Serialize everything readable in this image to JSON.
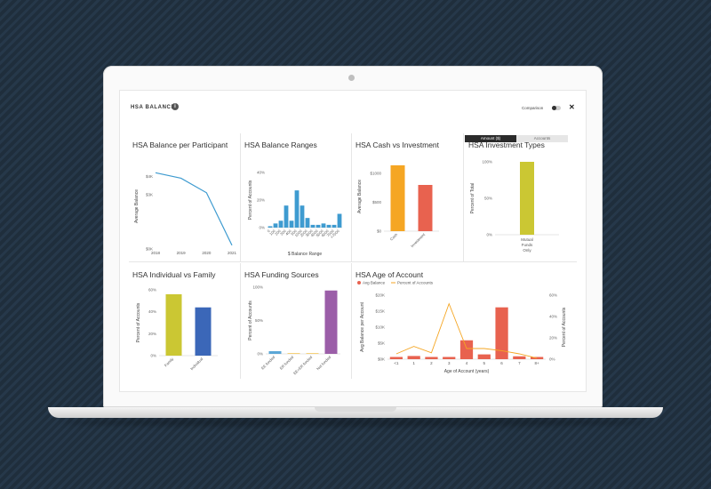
{
  "header": {
    "title": "HSA BALANCE",
    "info_glyph": "i",
    "comparison_label": "Comparison",
    "close_glyph": "✕",
    "toggle": {
      "amount_label": "Amount ($)",
      "accounts_label": "Accounts"
    }
  },
  "colors": {
    "blue": "#3e9bd0",
    "orange": "#f5a623",
    "red": "#e8624f",
    "olive": "#cbc733",
    "navy": "#3b67b8",
    "purple": "#9b5ea8",
    "sky": "#5ba7d6",
    "gold": "#f3c24d"
  },
  "chart_data": [
    {
      "id": "balance-per-participant",
      "type": "line",
      "title": "HSA Balance per Participant",
      "xlabel": "",
      "ylabel": "Average Balance",
      "categories": [
        "2018",
        "2019",
        "2020",
        "2021"
      ],
      "values": [
        4200,
        3900,
        3100,
        200
      ],
      "ylim": [
        0,
        5000
      ],
      "yticks": [
        "$0K",
        "$3K",
        "$4K"
      ],
      "ytick_values": [
        0,
        3000,
        4000
      ]
    },
    {
      "id": "balance-ranges",
      "type": "bar",
      "title": "HSA Balance Ranges",
      "xlabel": "$ Balance Range",
      "ylabel": "Percent of Accounts",
      "categories": [
        "0",
        "100",
        "200",
        "300",
        "400",
        "500",
        "1000",
        "2000",
        "3000",
        "4000",
        "5000",
        "6000",
        "7000",
        ">7000"
      ],
      "values": [
        1,
        3,
        5,
        16,
        5,
        27,
        16,
        7,
        2,
        2,
        3,
        2,
        2,
        10
      ],
      "ylim": [
        0,
        40
      ],
      "yticks": [
        "0%",
        "20%",
        "40%"
      ],
      "ytick_values": [
        0,
        20,
        40
      ]
    },
    {
      "id": "cash-vs-investment",
      "type": "bar",
      "title": "HSA Cash vs Investment",
      "xlabel": "",
      "ylabel": "Average Balance",
      "categories": [
        "Cash",
        "Investment"
      ],
      "values": [
        1140,
        800
      ],
      "ylim": [
        0,
        1200
      ],
      "yticks": [
        "$0",
        "$500",
        "$1000"
      ],
      "ytick_values": [
        0,
        500,
        1000
      ]
    },
    {
      "id": "investment-types",
      "type": "bar",
      "title": "HSA Investment Types",
      "xlabel": "",
      "ylabel": "Percent of Total",
      "categories": [
        "Mutual Funds Only"
      ],
      "values": [
        100
      ],
      "ylim": [
        0,
        100
      ],
      "yticks": [
        "0%",
        "50%",
        "100%"
      ],
      "ytick_values": [
        0,
        50,
        100
      ]
    },
    {
      "id": "individual-vs-family",
      "type": "bar",
      "title": "HSA Individual vs Family",
      "xlabel": "",
      "ylabel": "Percent of Accounts",
      "categories": [
        "Family",
        "Individual"
      ],
      "values": [
        56,
        44
      ],
      "ylim": [
        0,
        60
      ],
      "yticks": [
        "0%",
        "20%",
        "40%",
        "60%"
      ],
      "ytick_values": [
        0,
        20,
        40,
        60
      ]
    },
    {
      "id": "funding-sources",
      "type": "bar",
      "title": "HSA Funding Sources",
      "xlabel": "",
      "ylabel": "Percent of Accounts",
      "categories": [
        "EE funded",
        "ER funded",
        "EE+ER funded",
        "Not funded"
      ],
      "values": [
        4,
        1,
        1,
        95
      ],
      "ylim": [
        0,
        100
      ],
      "yticks": [
        "0%",
        "50%",
        "100%"
      ],
      "ytick_values": [
        0,
        50,
        100
      ]
    },
    {
      "id": "age-of-account",
      "type": "bar",
      "title": "HSA Age of Account",
      "xlabel": "Age of Account (years)",
      "ylabel": "Avg Balance per Account",
      "y2label": "Percent of Accounts",
      "categories": [
        "<1",
        "1",
        "2",
        "3",
        "4",
        "5",
        "6",
        "7",
        "8+"
      ],
      "series": [
        {
          "name": "Avg Balance",
          "values": [
            700,
            1000,
            700,
            700,
            5900,
            1500,
            16200,
            900,
            700
          ]
        },
        {
          "name": "Percent of Accounts",
          "values": [
            5,
            12,
            6,
            52,
            10,
            10,
            8,
            5,
            1
          ]
        }
      ],
      "ylim": [
        0,
        20000
      ],
      "y2lim": [
        0,
        60
      ],
      "yticks": [
        "$0K",
        "$5K",
        "$10K",
        "$15K",
        "$20K"
      ],
      "ytick_values": [
        0,
        5000,
        10000,
        15000,
        20000
      ],
      "y2ticks": [
        "0%",
        "20%",
        "40%",
        "60%"
      ],
      "y2tick_values": [
        0,
        20,
        40,
        60
      ],
      "legend": "top-left"
    }
  ]
}
